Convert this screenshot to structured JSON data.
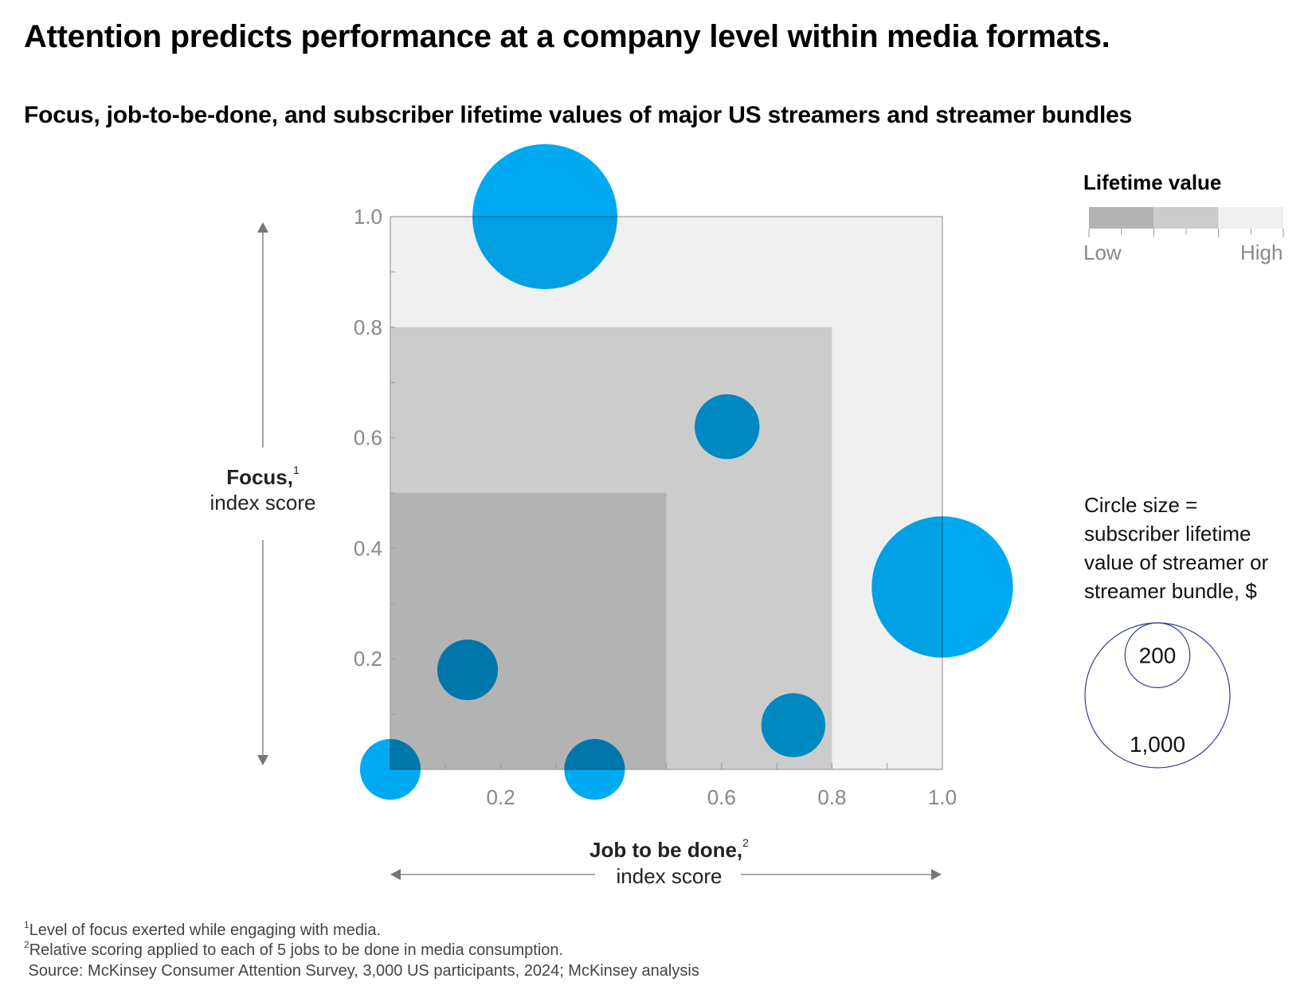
{
  "title": "Attention predicts performance at a company level within media formats.",
  "subtitle": "Focus, job-to-be-done, and subscriber lifetime values of major US streamers and streamer bundles",
  "chart_data": {
    "type": "scatter",
    "variant": "bubble",
    "xlabel": {
      "main": "Job to be done,",
      "sup": "2",
      "sub": "index score"
    },
    "ylabel": {
      "main": "Focus,",
      "sup": "1",
      "sub": "index score"
    },
    "xlim": [
      0,
      1.0
    ],
    "ylim": [
      0,
      1.0
    ],
    "x_ticks": [
      "0.2",
      "0.6",
      "0.8",
      "1.0"
    ],
    "x_tick_values": [
      0.2,
      0.6,
      0.8,
      1.0
    ],
    "y_ticks": [
      "0.2",
      "0.4",
      "0.6",
      "0.8",
      "1.0"
    ],
    "y_tick_values": [
      0.2,
      0.4,
      0.6,
      0.8,
      1.0
    ],
    "minor_tick_step": 0.1,
    "grid": false,
    "bubble_color": "#00aaf2",
    "bands": [
      {
        "level": "High",
        "x_max": 1.0,
        "y_max": 1.0,
        "color": "#f0f0f0"
      },
      {
        "level": "Medium",
        "x_max": 0.8,
        "y_max": 0.8,
        "color": "#cccccc"
      },
      {
        "level": "Low",
        "x_max": 0.5,
        "y_max": 0.5,
        "color": "#b3b3b3"
      }
    ],
    "points": [
      {
        "x": 0.28,
        "y": 1.0,
        "size": 1000
      },
      {
        "x": 0.61,
        "y": 0.62,
        "size": 200
      },
      {
        "x": 1.0,
        "y": 0.33,
        "size": 950
      },
      {
        "x": 0.14,
        "y": 0.18,
        "size": 175
      },
      {
        "x": 0.73,
        "y": 0.08,
        "size": 195
      },
      {
        "x": 0.0,
        "y": 0.0,
        "size": 175
      },
      {
        "x": 0.37,
        "y": 0.0,
        "size": 175
      }
    ],
    "legend": {
      "color_title": "Lifetime value",
      "low_label": "Low",
      "high_label": "High",
      "size_note": "Circle size = subscriber lifetime value of streamer or streamer bundle, $",
      "size_refs": [
        {
          "value": 200,
          "label": "200"
        },
        {
          "value": 1000,
          "label": "1,000"
        }
      ],
      "placement": "right"
    }
  },
  "footnotes": [
    {
      "sup": "1",
      "text": "Level of focus exerted while engaging with media."
    },
    {
      "sup": "2",
      "text": "Relative scoring applied to each of 5 jobs to be done in media consumption."
    },
    {
      "sup": "",
      "text": " Source: McKinsey Consumer Attention Survey, 3,000 US participants, 2024; McKinsey analysis"
    }
  ]
}
